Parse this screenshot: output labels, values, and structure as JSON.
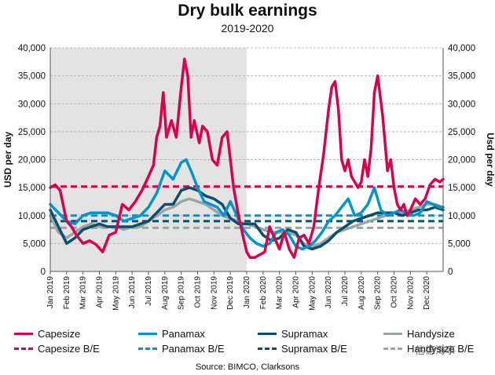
{
  "header": {
    "title": "Dry bulk earnings",
    "subtitle": "2019-2020"
  },
  "source": "Source: BIMCO, Clarksons",
  "watermark": "信德海事",
  "chart_data": {
    "type": "line",
    "title": "Dry bulk earnings",
    "subtitle": "2019-2020",
    "xlabel": "",
    "ylabel": "USD per day",
    "ylabel_right": "Usd per day",
    "ylim": [
      0,
      40000
    ],
    "yticks": [
      "0",
      "5,000",
      "10,000",
      "15,000",
      "20,000",
      "25,000",
      "30,000",
      "35,000",
      "40,000"
    ],
    "grid": "horizontal dashed",
    "shaded_period": "2019",
    "categories": [
      "Jan 2019",
      "Feb 2019",
      "Mar 2019",
      "Apr 2019",
      "May 2019",
      "Jun 2019",
      "Jul 2019",
      "Aug 2019",
      "Sep 2019",
      "Oct 2019",
      "Nov 2019",
      "Dec 2019",
      "Jan 2020",
      "Feb 2020",
      "Mar 2020",
      "Apr 2020",
      "May 2020",
      "Jun 2020",
      "Jul 2020",
      "Aug 2020",
      "Sep 2020",
      "Oct 2020",
      "Nov 2020",
      "Dec 2020"
    ],
    "series": [
      {
        "name": "Capesize",
        "color": "#d6004f",
        "style": "solid",
        "x": [
          0,
          0.3,
          0.6,
          1,
          1.3,
          1.6,
          2,
          2.4,
          2.8,
          3.2,
          3.6,
          4,
          4.4,
          4.8,
          5.2,
          5.6,
          6,
          6.3,
          6.5,
          6.7,
          6.9,
          7.1,
          7.4,
          7.7,
          8,
          8.2,
          8.4,
          8.6,
          8.8,
          9.1,
          9.3,
          9.6,
          9.9,
          10.2,
          10.5,
          10.8,
          11,
          11.2,
          11.5,
          11.8,
          12,
          12.2,
          12.5,
          12.8,
          13.1,
          13.4,
          13.7,
          14,
          14.3,
          14.6,
          14.9,
          15.2,
          15.5,
          15.8,
          16.1,
          16.4,
          16.7,
          17,
          17.2,
          17.4,
          17.6,
          17.8,
          18,
          18.2,
          18.4,
          18.6,
          18.8,
          19,
          19.2,
          19.4,
          19.6,
          19.8,
          20,
          20.3,
          20.6,
          20.8,
          21,
          21.2,
          21.4,
          21.6,
          21.8,
          22,
          22.3,
          22.6,
          22.9,
          23.2,
          23.5,
          23.8,
          24
        ],
        "y": [
          15000,
          15500,
          14500,
          9000,
          8000,
          6500,
          5000,
          5500,
          4800,
          3500,
          6500,
          7000,
          12000,
          11000,
          12500,
          14500,
          17000,
          19000,
          24000,
          26000,
          32000,
          24000,
          27000,
          24000,
          33000,
          38000,
          35000,
          24000,
          27000,
          23000,
          26000,
          25000,
          20000,
          19000,
          24000,
          25000,
          20000,
          15000,
          10000,
          6000,
          3500,
          2500,
          2500,
          3000,
          3500,
          8000,
          6000,
          4000,
          7000,
          4000,
          2500,
          6000,
          6500,
          5000,
          8000,
          15000,
          21000,
          29000,
          33000,
          34000,
          29000,
          20000,
          18000,
          20000,
          17000,
          16000,
          15000,
          16000,
          20000,
          17000,
          22000,
          32000,
          35000,
          28000,
          18000,
          20000,
          15000,
          12000,
          11000,
          12000,
          10000,
          11000,
          13000,
          12000,
          13000,
          15500,
          16500,
          16000,
          16500
        ]
      },
      {
        "name": "Panamax",
        "color": "#0095c8",
        "style": "solid",
        "x": [
          0,
          0.5,
          1,
          1.5,
          2,
          2.5,
          3,
          3.5,
          4,
          4.5,
          5,
          5.5,
          6,
          6.5,
          7,
          7.5,
          8,
          8.3,
          8.6,
          9,
          9.4,
          9.8,
          10.2,
          10.6,
          11,
          11.4,
          11.8,
          12.2,
          12.6,
          13,
          13.4,
          13.8,
          14.2,
          14.6,
          15,
          15.4,
          15.8,
          16.2,
          16.6,
          17,
          17.4,
          17.8,
          18.2,
          18.6,
          19,
          19.4,
          19.8,
          20.2,
          20.6,
          21,
          21.4,
          21.8,
          22.2,
          22.6,
          23,
          23.4,
          23.8,
          24
        ],
        "y": [
          12000,
          10500,
          9000,
          8500,
          10000,
          10500,
          10500,
          10500,
          10000,
          9000,
          9500,
          10000,
          11500,
          14000,
          18000,
          16500,
          19500,
          20000,
          18000,
          15000,
          12500,
          12000,
          11500,
          10000,
          12500,
          10000,
          7500,
          6000,
          5000,
          4500,
          5000,
          7000,
          7500,
          6500,
          4500,
          4000,
          4500,
          5500,
          7000,
          9000,
          10000,
          11500,
          13000,
          10000,
          10500,
          12000,
          15000,
          11000,
          10000,
          10500,
          11000,
          10500,
          10000,
          10500,
          12500,
          12000,
          11500,
          11500
        ]
      },
      {
        "name": "Supramax",
        "color": "#0b4f6c",
        "style": "solid",
        "x": [
          0,
          0.5,
          1,
          1.5,
          2,
          2.5,
          3,
          3.5,
          4,
          4.5,
          5,
          5.5,
          6,
          6.5,
          7,
          7.5,
          8,
          8.5,
          9,
          9.5,
          10,
          10.5,
          11,
          11.5,
          12,
          12.5,
          13,
          13.5,
          14,
          14.5,
          15,
          15.5,
          16,
          16.5,
          17,
          17.5,
          18,
          18.5,
          19,
          19.5,
          20,
          20.5,
          21,
          21.5,
          22,
          22.5,
          23,
          23.5,
          24
        ],
        "y": [
          11000,
          8000,
          5000,
          6000,
          7500,
          8000,
          8500,
          8000,
          8000,
          8000,
          8000,
          8500,
          9000,
          10500,
          12000,
          12000,
          14500,
          15000,
          14500,
          13500,
          13000,
          12000,
          9500,
          8500,
          8500,
          8500,
          6500,
          5500,
          6000,
          7500,
          7000,
          4500,
          4000,
          4500,
          5500,
          7000,
          8000,
          9000,
          9500,
          10000,
          10500,
          10500,
          10500,
          10000,
          10500,
          11000,
          11000,
          11500,
          11000
        ]
      },
      {
        "name": "Handysize",
        "color": "#9aa5a6",
        "style": "solid",
        "x": [
          0,
          0.5,
          1,
          1.5,
          2,
          2.5,
          3,
          3.5,
          4,
          4.5,
          5,
          5.5,
          6,
          6.5,
          7,
          7.5,
          8,
          8.5,
          9,
          9.5,
          10,
          10.5,
          11,
          11.5,
          12,
          12.5,
          13,
          13.5,
          14,
          14.5,
          15,
          15.5,
          16,
          16.5,
          17,
          17.5,
          18,
          18.5,
          19,
          19.5,
          20,
          20.5,
          21,
          21.5,
          22,
          22.5,
          23,
          23.5,
          24
        ],
        "y": [
          10000,
          7000,
          6000,
          7000,
          8000,
          8500,
          8000,
          8000,
          8000,
          7500,
          8000,
          8000,
          9000,
          10000,
          11000,
          11500,
          12500,
          13000,
          12500,
          12000,
          11000,
          10000,
          9500,
          9000,
          8500,
          8000,
          7500,
          7000,
          7000,
          7000,
          6500,
          5000,
          4500,
          5000,
          6000,
          7000,
          7500,
          8000,
          8500,
          9000,
          9500,
          10000,
          10500,
          10500,
          11000,
          11500,
          12000,
          12000,
          11500
        ]
      }
    ],
    "breakevens": [
      {
        "name": "Capesize B/E",
        "value": 15200,
        "color": "#d6004f",
        "style": "dashed"
      },
      {
        "name": "Panamax B/E",
        "value": 10000,
        "color": "#0095c8",
        "style": "dashed"
      },
      {
        "name": "Supramax B/E",
        "value": 9000,
        "color": "#0b4f6c",
        "style": "dashed"
      },
      {
        "name": "Handysize B/E",
        "value": 7800,
        "color": "#9aa5a6",
        "style": "dashed"
      }
    ]
  },
  "legend": [
    {
      "label": "Capesize",
      "color": "#d6004f",
      "dashed": false
    },
    {
      "label": "Panamax",
      "color": "#0095c8",
      "dashed": false
    },
    {
      "label": "Supramax",
      "color": "#0b4f6c",
      "dashed": false
    },
    {
      "label": "Handysize",
      "color": "#9aa5a6",
      "dashed": false
    },
    {
      "label": "Capesize B/E",
      "color": "#d6004f",
      "dashed": true
    },
    {
      "label": "Panamax B/E",
      "color": "#0095c8",
      "dashed": true
    },
    {
      "label": "Supramax B/E",
      "color": "#0b4f6c",
      "dashed": true
    },
    {
      "label": "Handysize B/E",
      "color": "#9aa5a6",
      "dashed": true
    }
  ]
}
